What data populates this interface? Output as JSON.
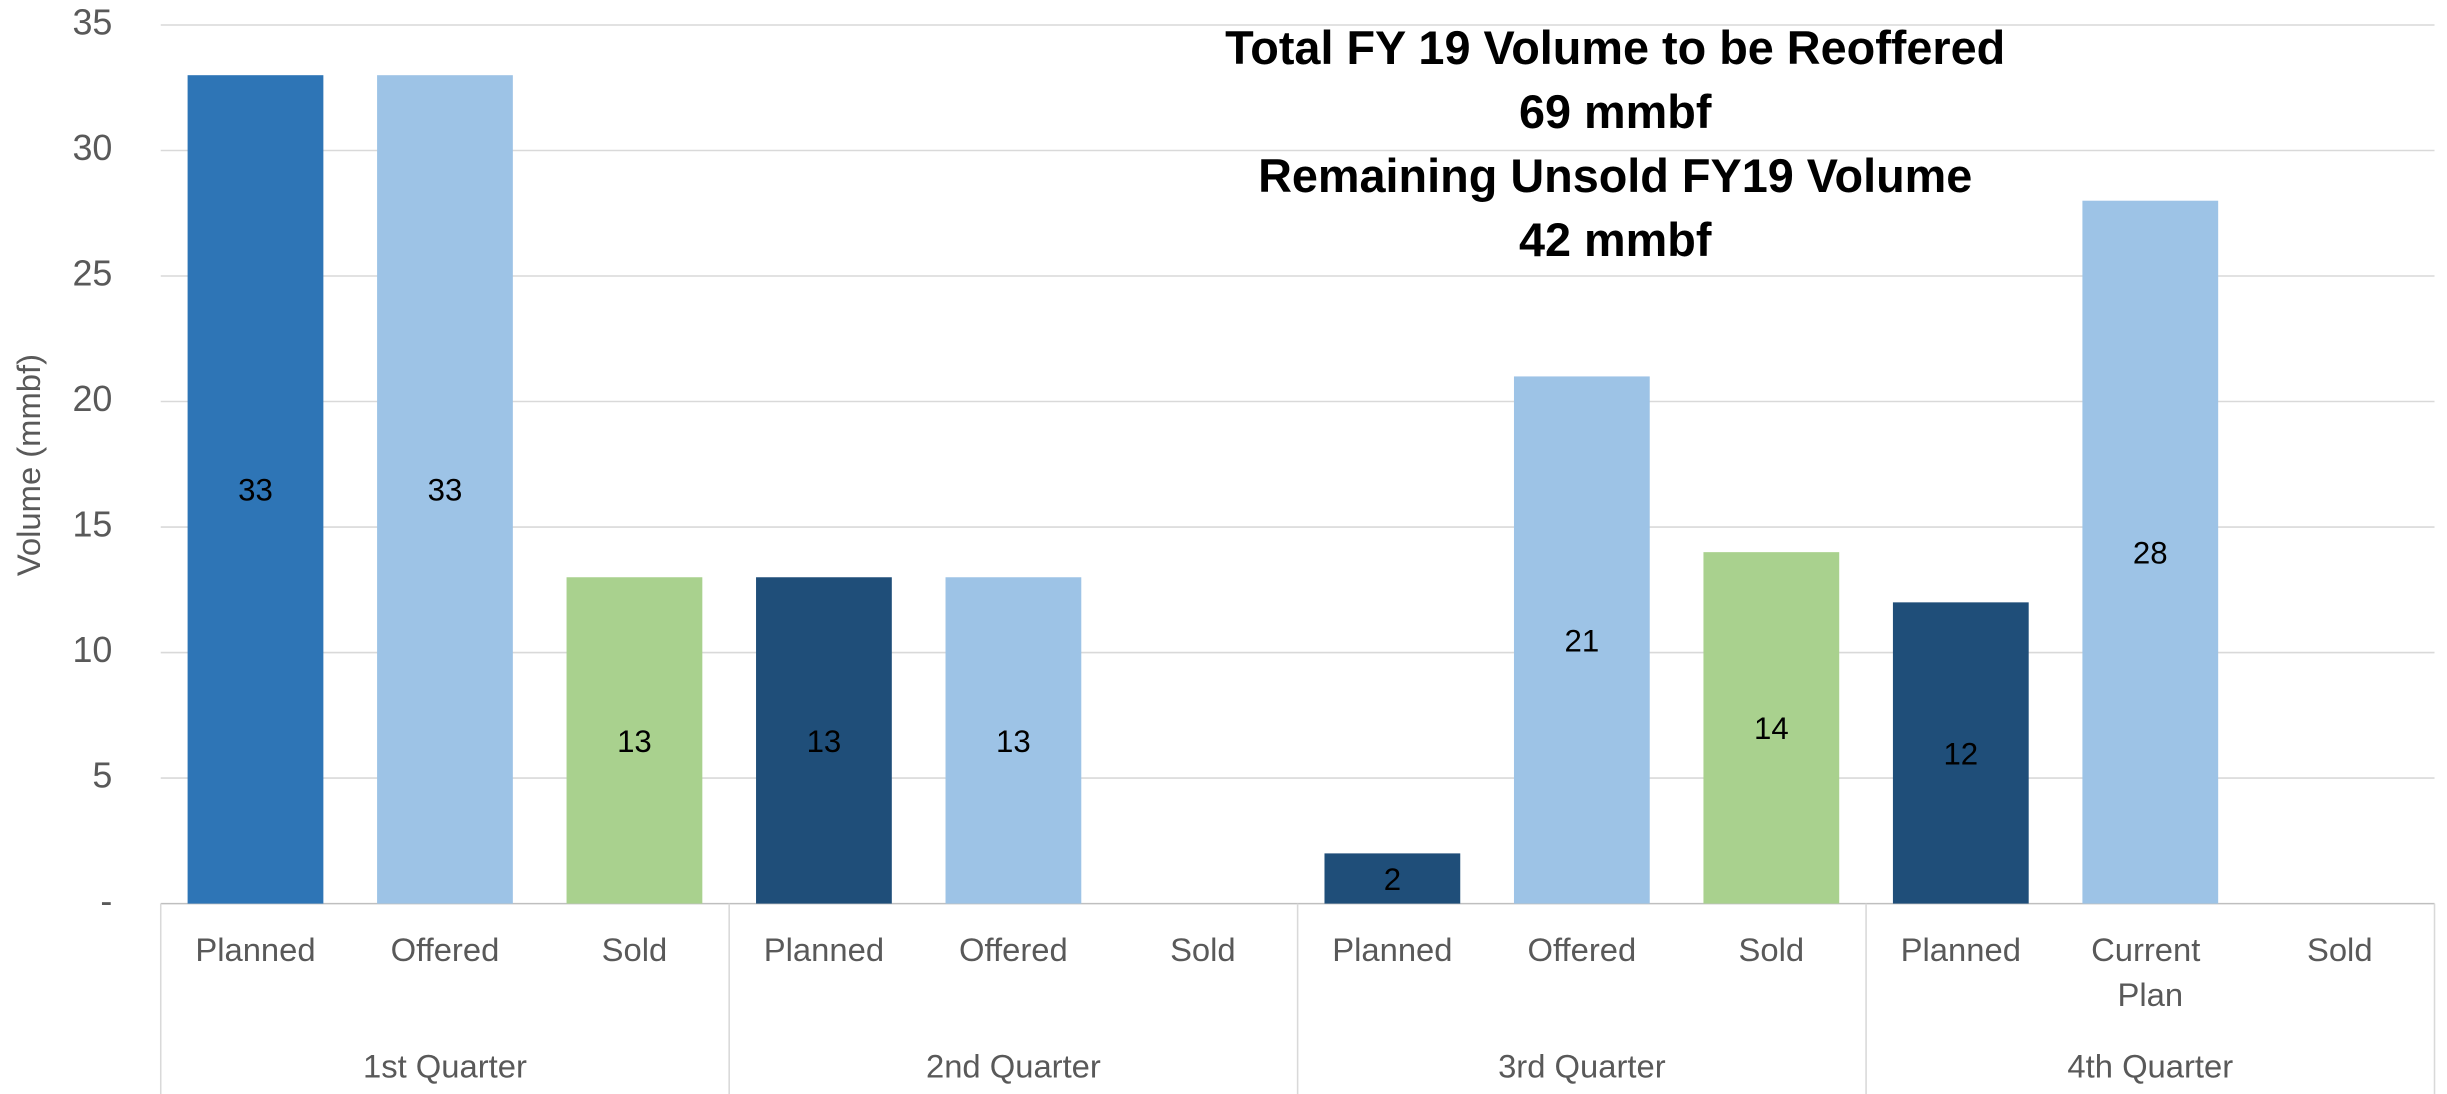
{
  "chart_data": {
    "type": "bar",
    "annotations": [
      "Total FY 19 Volume to be Reoffered",
      "69 mmbf",
      "Remaining Unsold FY19 Volume",
      "42 mmbf"
    ],
    "y_label": "Volume (mmbf)",
    "categories": [
      "Planned",
      "Offered",
      "Sold",
      "Planned",
      "Offered",
      "Sold",
      "Planned",
      "Offered",
      "Sold",
      "Planned",
      "Current Plan",
      "Sold"
    ],
    "groups": [
      "1st Quarter",
      "2nd Quarter",
      "3rd Quarter",
      "4th Quarter"
    ],
    "values": [
      33,
      33,
      13,
      13,
      13,
      null,
      2,
      21,
      14,
      12,
      28,
      null
    ],
    "colors": [
      "#2e75b6",
      "#9dc3e6",
      "#a9d18e",
      "#1f4e79",
      "#9dc3e6",
      "#a9d18e",
      "#1f4e79",
      "#9dc3e6",
      "#a9d18e",
      "#1f4e79",
      "#9dc3e6",
      "#a9d18e"
    ],
    "ylim": [
      0,
      35
    ],
    "yticks": [
      {
        "value": 0,
        "label": "-"
      },
      5,
      10,
      15,
      20,
      25,
      30,
      35
    ],
    "grid": true
  }
}
